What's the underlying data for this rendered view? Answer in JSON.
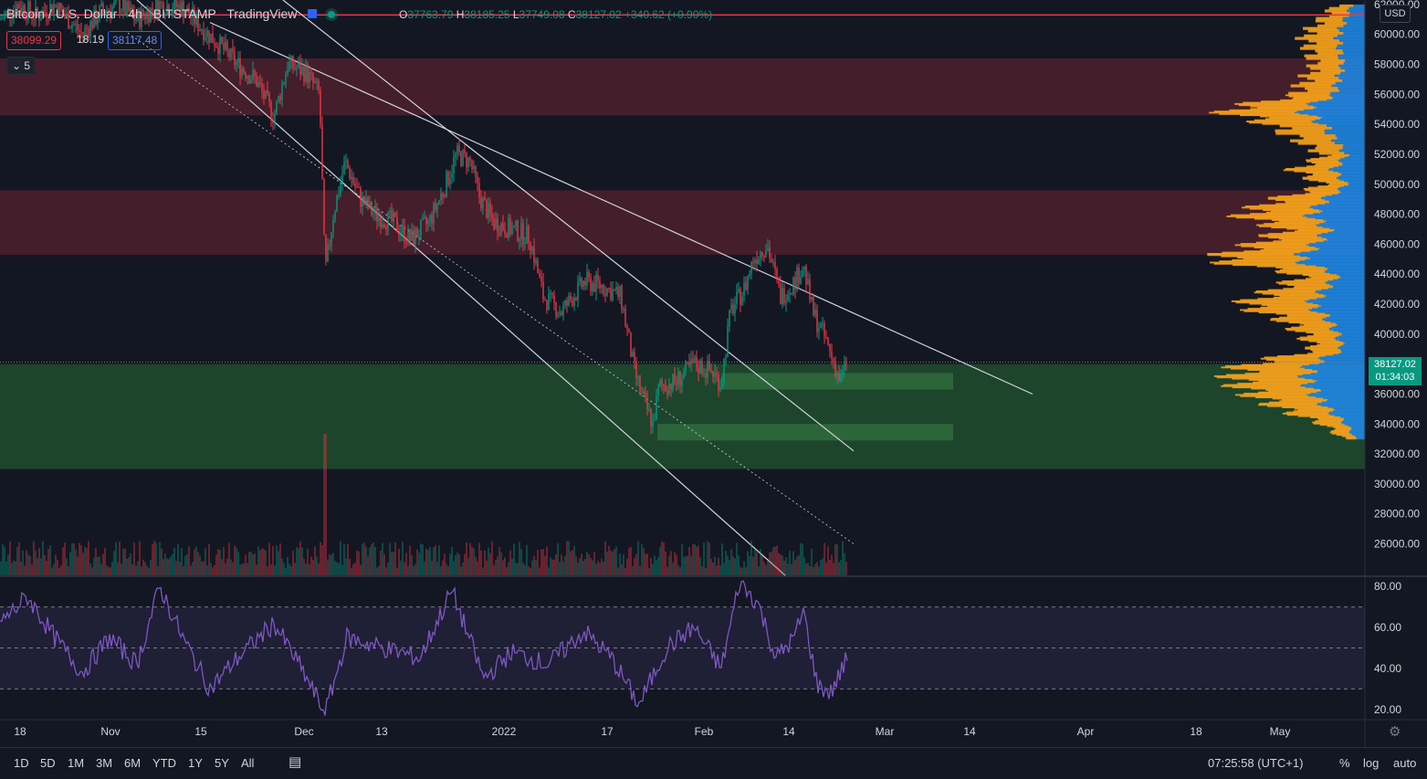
{
  "header": {
    "symbol": "Bitcoin / U.S. Dollar",
    "interval": "4h",
    "exchange": "BITSTAMP",
    "platform": "TradingView",
    "ohlc": {
      "o_label": "O",
      "open": "37763.79",
      "h_label": "H",
      "high": "38185.25",
      "l_label": "L",
      "low": "37749.08",
      "c_label": "C",
      "close": "38127.02",
      "change": "+340.62 (+0.90%)"
    },
    "sell_price": "38099.29",
    "spread": "18.19",
    "buy_price": "38117.48",
    "collapse_label": "5"
  },
  "currency": "USD",
  "last_price": {
    "value": "38127.02",
    "countdown": "01:34:03"
  },
  "colors": {
    "up": "#089981",
    "down": "#f23645",
    "rsi": "#7e57c2",
    "resistance_zone": "#4a1f2c",
    "support_zone": "#1e4a2e",
    "vp_up": "#1e88e5",
    "vp_down": "#f7a21b"
  },
  "chart_data": {
    "type": "candlestick",
    "price_axis": {
      "ticks": [
        "62000.00",
        "60000.00",
        "58000.00",
        "56000.00",
        "54000.00",
        "52000.00",
        "50000.00",
        "48000.00",
        "46000.00",
        "44000.00",
        "42000.00",
        "40000.00",
        "36000.00",
        "34000.00",
        "32000.00",
        "30000.00",
        "28000.00",
        "26000.00"
      ],
      "range": [
        23900,
        62300
      ]
    },
    "time_axis": {
      "ticks": [
        "18",
        "Nov",
        "15",
        "Dec",
        "13",
        "2022",
        "17",
        "Feb",
        "14",
        "Mar",
        "14",
        "Apr",
        "18",
        "May"
      ]
    },
    "zones": [
      {
        "kind": "resistance",
        "from": 54600,
        "to": 58400
      },
      {
        "kind": "resistance",
        "from": 45300,
        "to": 49600
      },
      {
        "kind": "support",
        "from": 31000,
        "to": 38000
      },
      {
        "kind": "support-box",
        "from": 36300,
        "to": 37400
      },
      {
        "kind": "support-box",
        "from": 32900,
        "to": 34000
      }
    ],
    "horizontal_line": 61300,
    "ohlc_path": [
      [
        0,
        61000
      ],
      [
        20,
        62000
      ],
      [
        40,
        61200
      ],
      [
        60,
        62000
      ],
      [
        90,
        60000
      ],
      [
        110,
        61500
      ],
      [
        130,
        62000
      ],
      [
        150,
        61000
      ],
      [
        175,
        62000
      ],
      [
        200,
        61800
      ],
      [
        220,
        60500
      ],
      [
        240,
        59300
      ],
      [
        260,
        58000
      ],
      [
        280,
        57000
      ],
      [
        300,
        54500
      ],
      [
        315,
        58000
      ],
      [
        335,
        57500
      ],
      [
        350,
        56000
      ],
      [
        356,
        44000
      ],
      [
        365,
        48000
      ],
      [
        378,
        51500
      ],
      [
        395,
        49000
      ],
      [
        410,
        48000
      ],
      [
        430,
        47500
      ],
      [
        450,
        46300
      ],
      [
        470,
        47500
      ],
      [
        485,
        49500
      ],
      [
        500,
        52000
      ],
      [
        515,
        51500
      ],
      [
        525,
        49200
      ],
      [
        540,
        47500
      ],
      [
        560,
        47000
      ],
      [
        580,
        46500
      ],
      [
        595,
        42500
      ],
      [
        615,
        41500
      ],
      [
        640,
        43500
      ],
      [
        660,
        43200
      ],
      [
        680,
        42500
      ],
      [
        695,
        37500
      ],
      [
        705,
        35500
      ],
      [
        715,
        34000
      ],
      [
        722,
        36500
      ],
      [
        740,
        36800
      ],
      [
        760,
        38000
      ],
      [
        780,
        37500
      ],
      [
        790,
        36700
      ],
      [
        800,
        41500
      ],
      [
        815,
        43000
      ],
      [
        825,
        45000
      ],
      [
        840,
        46000
      ],
      [
        855,
        42500
      ],
      [
        870,
        43500
      ],
      [
        880,
        44600
      ],
      [
        890,
        41500
      ],
      [
        905,
        39500
      ],
      [
        915,
        37800
      ],
      [
        920,
        36800
      ],
      [
        928,
        38127
      ]
    ],
    "volume_spike_x": 356,
    "rsi": {
      "ticks": [
        "80.00",
        "60.00",
        "40.00",
        "20.00"
      ],
      "levels": [
        70,
        50,
        30
      ],
      "range": [
        15,
        85
      ],
      "path": [
        [
          0,
          62
        ],
        [
          30,
          75
        ],
        [
          60,
          55
        ],
        [
          90,
          38
        ],
        [
          120,
          55
        ],
        [
          150,
          42
        ],
        [
          175,
          80
        ],
        [
          200,
          55
        ],
        [
          230,
          30
        ],
        [
          260,
          45
        ],
        [
          300,
          62
        ],
        [
          330,
          40
        ],
        [
          356,
          18
        ],
        [
          380,
          55
        ],
        [
          420,
          50
        ],
        [
          460,
          45
        ],
        [
          495,
          78
        ],
        [
          530,
          35
        ],
        [
          560,
          48
        ],
        [
          600,
          42
        ],
        [
          640,
          58
        ],
        [
          670,
          45
        ],
        [
          700,
          22
        ],
        [
          730,
          50
        ],
        [
          760,
          60
        ],
        [
          790,
          40
        ],
        [
          810,
          82
        ],
        [
          830,
          72
        ],
        [
          850,
          45
        ],
        [
          870,
          55
        ],
        [
          880,
          68
        ],
        [
          895,
          32
        ],
        [
          910,
          28
        ],
        [
          928,
          45
        ]
      ]
    },
    "trend_lines": [
      {
        "x1": 230,
        "y1": 60800,
        "x2": 1131,
        "y2": 36000
      },
      {
        "x1": 310,
        "y1": 62300,
        "x2": 935,
        "y2": 32200
      },
      {
        "x1": 150,
        "y1": 62300,
        "x2": 860,
        "y2": 23900
      },
      {
        "x1": 140,
        "y1": 60100,
        "x2": 935,
        "y2": 26000,
        "dotted": true
      }
    ],
    "volume_profile": [
      [
        62000,
        0.15
      ],
      [
        60000,
        0.3
      ],
      [
        58000,
        0.25
      ],
      [
        56000,
        0.35
      ],
      [
        55000,
        0.7
      ],
      [
        54000,
        0.45
      ],
      [
        52000,
        0.2
      ],
      [
        51000,
        0.35
      ],
      [
        50000,
        0.2
      ],
      [
        49000,
        0.45
      ],
      [
        48000,
        0.6
      ],
      [
        47000,
        0.4
      ],
      [
        46000,
        0.55
      ],
      [
        45000,
        0.75
      ],
      [
        44000,
        0.3
      ],
      [
        43000,
        0.45
      ],
      [
        42000,
        0.6
      ],
      [
        41000,
        0.4
      ],
      [
        40000,
        0.3
      ],
      [
        39000,
        0.25
      ],
      [
        38000,
        0.6
      ],
      [
        37000,
        0.65
      ],
      [
        36000,
        0.55
      ],
      [
        35000,
        0.4
      ],
      [
        34000,
        0.2
      ],
      [
        33000,
        0.1
      ]
    ]
  },
  "timeframes": [
    "1D",
    "5D",
    "1M",
    "3M",
    "6M",
    "YTD",
    "1Y",
    "5Y",
    "All"
  ],
  "clock": "07:25:58 (UTC+1)",
  "options": {
    "percent": "%",
    "log": "log",
    "auto": "auto"
  }
}
